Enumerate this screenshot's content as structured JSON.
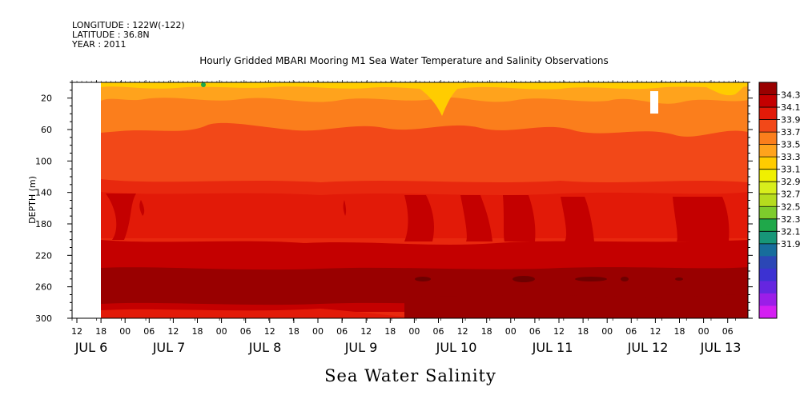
{
  "header": {
    "longitude": "LONGITUDE : 122W(-122)",
    "latitude": "LATITUDE : 36.8N",
    "year": "YEAR : 2011"
  },
  "chart_data": {
    "type": "heatmap",
    "title": "Hourly Gridded MBARI Mooring M1 Sea Water Temperature and Salinity Observations",
    "xlabel": "Sea Water Salinity",
    "ylabel": "DEPTH (m)",
    "y_axis": {
      "range": [
        300,
        0
      ],
      "ticks": [
        20,
        60,
        100,
        140,
        180,
        220,
        260,
        300
      ]
    },
    "x_axis": {
      "hour_ticks": [
        "12",
        "18",
        "00",
        "06",
        "12",
        "18",
        "00",
        "06",
        "12",
        "18",
        "00",
        "06",
        "12",
        "18",
        "00",
        "06",
        "12",
        "18",
        "00",
        "06",
        "12",
        "18",
        "00",
        "06",
        "12",
        "18",
        "00",
        "06",
        "12",
        "18",
        "00",
        "06"
      ],
      "day_labels": [
        "JUL  6",
        "JUL  7",
        "JUL  8",
        "JUL  9",
        "JUL 10",
        "JUL 11",
        "JUL 12",
        "JUL 13"
      ]
    },
    "colorbar": {
      "levels": [
        "34.3",
        "34.1",
        "33.9",
        "33.7",
        "33.5",
        "33.3",
        "33.1",
        "32.9",
        "32.7",
        "32.5",
        "32.3",
        "32.1",
        "31.9"
      ],
      "colors": [
        "#990000",
        "#c40000",
        "#e21a08",
        "#f24818",
        "#fb7e1c",
        "#ffa31c",
        "#ffcc00",
        "#f0f000",
        "#d8ee1c",
        "#b6dc1e",
        "#7ecc2c",
        "#1fa84a",
        "#179678",
        "#176d9c",
        "#2b47b6",
        "#3c32d2",
        "#6526e0",
        "#9b1ee8",
        "#d41ff2"
      ]
    },
    "depth_bands": [
      {
        "depth_range": [
          0,
          20
        ],
        "salinity": "33.6-33.7"
      },
      {
        "depth_range": [
          20,
          60
        ],
        "salinity": "33.7-33.8"
      },
      {
        "depth_range": [
          60,
          130
        ],
        "salinity": "33.8-34.0"
      },
      {
        "depth_range": [
          130,
          225
        ],
        "salinity": "34.0-34.2"
      },
      {
        "depth_range": [
          225,
          290
        ],
        "salinity": "34.2-34.3"
      },
      {
        "depth_range": [
          290,
          300
        ],
        "salinity": "34.1-34.2"
      }
    ]
  }
}
